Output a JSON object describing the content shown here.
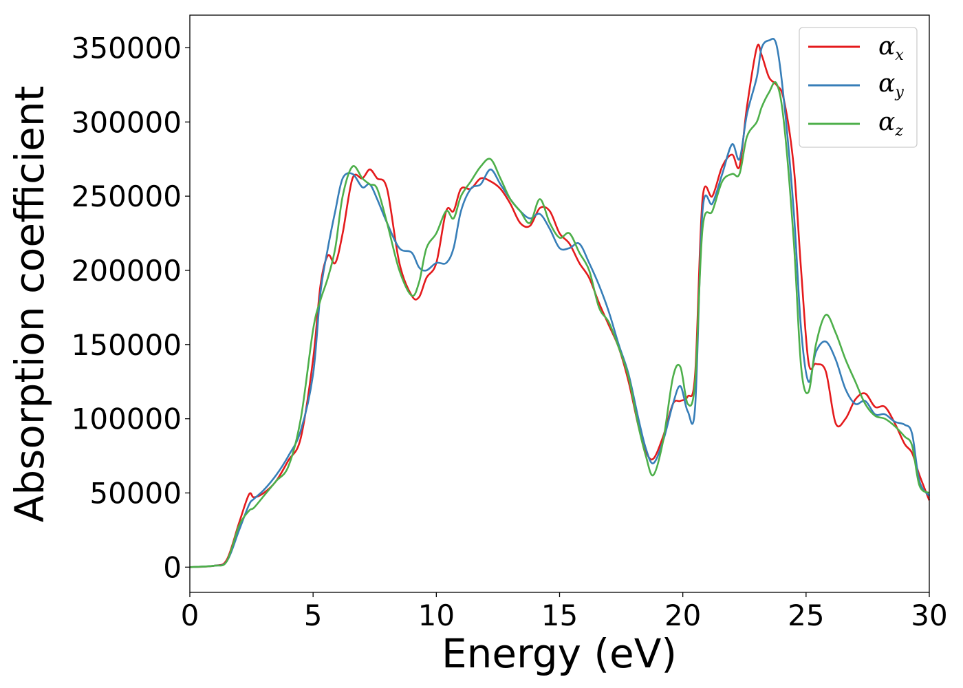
{
  "chart_data": {
    "type": "line",
    "title": "",
    "xlabel": "Energy (eV)",
    "ylabel": "Absorption coefficient",
    "xlim": [
      0,
      30
    ],
    "ylim": [
      -17000,
      372000
    ],
    "xticks": [
      0,
      5,
      10,
      15,
      20,
      25,
      30
    ],
    "xtick_labels": [
      "0",
      "5",
      "10",
      "15",
      "20",
      "25",
      "30"
    ],
    "yticks": [
      0,
      50000,
      100000,
      150000,
      200000,
      250000,
      300000,
      350000
    ],
    "ytick_labels": [
      "0",
      "50000",
      "100000",
      "150000",
      "200000",
      "250000",
      "300000",
      "350000"
    ],
    "grid": false,
    "legend_position": "top-right",
    "series": [
      {
        "name": "α",
        "subscript": "x",
        "color": "#e41a1c",
        "x": [
          0,
          1,
          1.5,
          2,
          2.4,
          2.6,
          3,
          3.5,
          4,
          4.5,
          5,
          5.3,
          5.6,
          5.9,
          6.2,
          6.6,
          7,
          7.3,
          7.6,
          8,
          8.5,
          9,
          9.3,
          9.6,
          10,
          10.4,
          10.7,
          11,
          11.4,
          11.8,
          12.2,
          12.6,
          13,
          13.4,
          13.8,
          14.2,
          14.6,
          15,
          15.4,
          15.8,
          16.2,
          16.6,
          17,
          17.4,
          17.8,
          18.2,
          18.5,
          18.8,
          19.2,
          19.6,
          19.9,
          20.2,
          20.5,
          20.8,
          21.2,
          21.6,
          22,
          22.3,
          22.6,
          23,
          23.2,
          23.5,
          23.8,
          24.1,
          24.5,
          24.8,
          25.1,
          25.4,
          25.8,
          26.2,
          26.6,
          27,
          27.4,
          27.8,
          28.2,
          28.6,
          29,
          29.3,
          29.6,
          30
        ],
        "y": [
          0,
          1000,
          5000,
          30000,
          49000,
          47000,
          50000,
          58000,
          72000,
          87000,
          140000,
          190000,
          210000,
          205000,
          225000,
          262000,
          262000,
          268000,
          262000,
          255000,
          205000,
          183000,
          182000,
          195000,
          205000,
          240000,
          240000,
          255000,
          255000,
          262000,
          260000,
          255000,
          245000,
          232000,
          230000,
          242000,
          240000,
          225000,
          218000,
          205000,
          195000,
          178000,
          163000,
          148000,
          125000,
          95000,
          78000,
          73000,
          88000,
          110000,
          112000,
          115000,
          130000,
          248000,
          250000,
          270000,
          278000,
          270000,
          310000,
          350000,
          345000,
          330000,
          325000,
          315000,
          270000,
          200000,
          138000,
          137000,
          132000,
          97000,
          100000,
          113000,
          117000,
          108000,
          108000,
          97000,
          83000,
          77000,
          62000,
          45000
        ]
      },
      {
        "name": "α",
        "subscript": "y",
        "color": "#377eb8",
        "x": [
          0,
          1,
          1.5,
          2,
          2.4,
          2.6,
          3,
          3.5,
          4,
          4.5,
          5,
          5.3,
          5.6,
          5.9,
          6.2,
          6.6,
          7,
          7.3,
          7.6,
          8,
          8.5,
          9,
          9.3,
          9.6,
          10,
          10.4,
          10.7,
          11,
          11.4,
          11.8,
          12.2,
          12.6,
          13,
          13.4,
          13.8,
          14.2,
          14.6,
          15,
          15.4,
          15.8,
          16.2,
          16.6,
          17,
          17.4,
          17.8,
          18.2,
          18.5,
          18.8,
          19.2,
          19.6,
          19.9,
          20.2,
          20.5,
          20.8,
          21.2,
          21.6,
          22,
          22.3,
          22.6,
          23,
          23.2,
          23.5,
          23.8,
          24.1,
          24.5,
          24.8,
          25.1,
          25.4,
          25.8,
          26.2,
          26.6,
          27,
          27.4,
          27.8,
          28.2,
          28.6,
          29,
          29.3,
          29.6,
          30
        ],
        "y": [
          0,
          1000,
          4000,
          25000,
          42000,
          46000,
          52000,
          62000,
          75000,
          92000,
          130000,
          185000,
          215000,
          240000,
          262000,
          265000,
          256000,
          258000,
          248000,
          232000,
          215000,
          212000,
          202000,
          200000,
          205000,
          205000,
          215000,
          240000,
          255000,
          258000,
          268000,
          258000,
          248000,
          240000,
          235000,
          238000,
          228000,
          215000,
          215000,
          218000,
          205000,
          190000,
          172000,
          150000,
          130000,
          100000,
          80000,
          70000,
          85000,
          110000,
          122000,
          105000,
          108000,
          240000,
          245000,
          265000,
          285000,
          275000,
          305000,
          330000,
          350000,
          355000,
          352000,
          315000,
          240000,
          160000,
          125000,
          145000,
          152000,
          140000,
          120000,
          110000,
          112000,
          103000,
          103000,
          98000,
          96000,
          90000,
          58000,
          48000
        ]
      },
      {
        "name": "α",
        "subscript": "z",
        "color": "#4daf4a",
        "x": [
          0,
          1,
          1.5,
          2,
          2.4,
          2.6,
          3,
          3.5,
          4,
          4.5,
          5,
          5.3,
          5.6,
          5.9,
          6.2,
          6.6,
          7,
          7.3,
          7.6,
          8,
          8.5,
          9,
          9.3,
          9.6,
          10,
          10.4,
          10.7,
          11,
          11.4,
          11.8,
          12.2,
          12.6,
          13,
          13.4,
          13.8,
          14.2,
          14.6,
          15,
          15.4,
          15.8,
          16.2,
          16.6,
          17,
          17.4,
          17.8,
          18.2,
          18.5,
          18.8,
          19.2,
          19.6,
          19.9,
          20.2,
          20.5,
          20.8,
          21.2,
          21.6,
          22,
          22.3,
          22.6,
          23,
          23.2,
          23.5,
          23.8,
          24.1,
          24.5,
          24.8,
          25.1,
          25.4,
          25.8,
          26.2,
          26.6,
          27,
          27.4,
          27.8,
          28.2,
          28.6,
          29,
          29.3,
          29.6,
          30
        ],
        "y": [
          0,
          1000,
          4000,
          28000,
          38000,
          40000,
          48000,
          58000,
          68000,
          100000,
          160000,
          180000,
          195000,
          215000,
          250000,
          270000,
          262000,
          258000,
          255000,
          232000,
          200000,
          183000,
          192000,
          215000,
          225000,
          240000,
          235000,
          250000,
          260000,
          270000,
          275000,
          262000,
          248000,
          240000,
          232000,
          248000,
          232000,
          222000,
          225000,
          212000,
          200000,
          175000,
          165000,
          148000,
          128000,
          95000,
          75000,
          62000,
          85000,
          128000,
          135000,
          110000,
          125000,
          228000,
          240000,
          260000,
          265000,
          265000,
          290000,
          300000,
          310000,
          320000,
          326000,
          300000,
          220000,
          135000,
          118000,
          150000,
          170000,
          158000,
          140000,
          125000,
          110000,
          102000,
          100000,
          95000,
          88000,
          82000,
          55000,
          50000
        ]
      }
    ]
  }
}
